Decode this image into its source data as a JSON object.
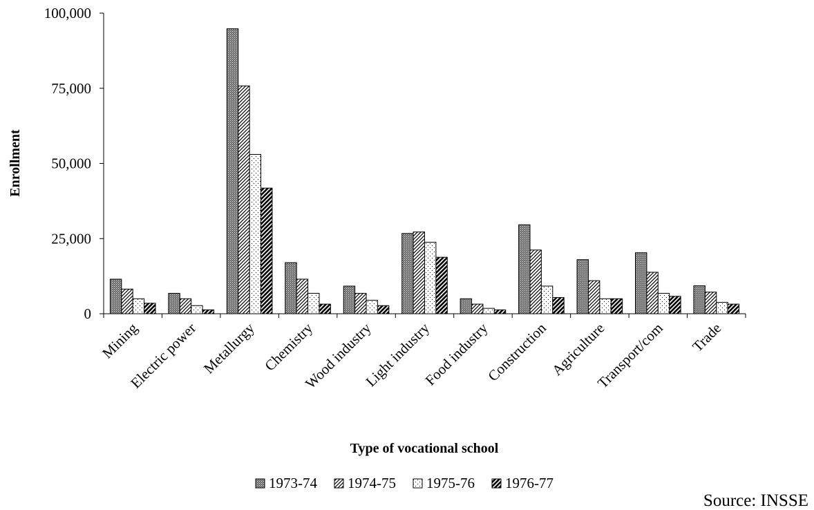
{
  "chart_data": {
    "type": "bar",
    "xlabel": "Type of vocational school",
    "ylabel": "Enrollment",
    "ylim": [
      0,
      100000
    ],
    "yticks": [
      0,
      25000,
      50000,
      75000,
      100000
    ],
    "ytick_labels": [
      "0",
      "25,000",
      "50,000",
      "75,000",
      "100,000"
    ],
    "categories": [
      "Mining",
      "Electric power",
      "Metallurgy",
      "Chemistry",
      "Wood industry",
      "Light industry",
      "Food industry",
      "Construction",
      "Agriculture",
      "Transport/com",
      "Trade"
    ],
    "series": [
      {
        "name": "1973-74",
        "pattern": "dense-dots",
        "values": [
          11500,
          6800,
          94800,
          17000,
          9200,
          26700,
          5000,
          29600,
          18000,
          20300,
          9300
        ]
      },
      {
        "name": "1974-75",
        "pattern": "diagonal-hatch",
        "values": [
          8200,
          5000,
          75800,
          11500,
          6800,
          27200,
          3200,
          21200,
          11000,
          13800,
          7200
        ]
      },
      {
        "name": "1975-76",
        "pattern": "sparse-dots",
        "values": [
          5000,
          2700,
          53000,
          6800,
          4500,
          23800,
          1800,
          9200,
          5000,
          6800,
          3800
        ]
      },
      {
        "name": "1976-77",
        "pattern": "bold-hatch",
        "values": [
          3500,
          1300,
          41800,
          3200,
          2700,
          18800,
          1300,
          5400,
          5000,
          5800,
          3200
        ]
      }
    ],
    "legend_position": "bottom",
    "grid": false
  },
  "source_note": "Source: INSSE"
}
